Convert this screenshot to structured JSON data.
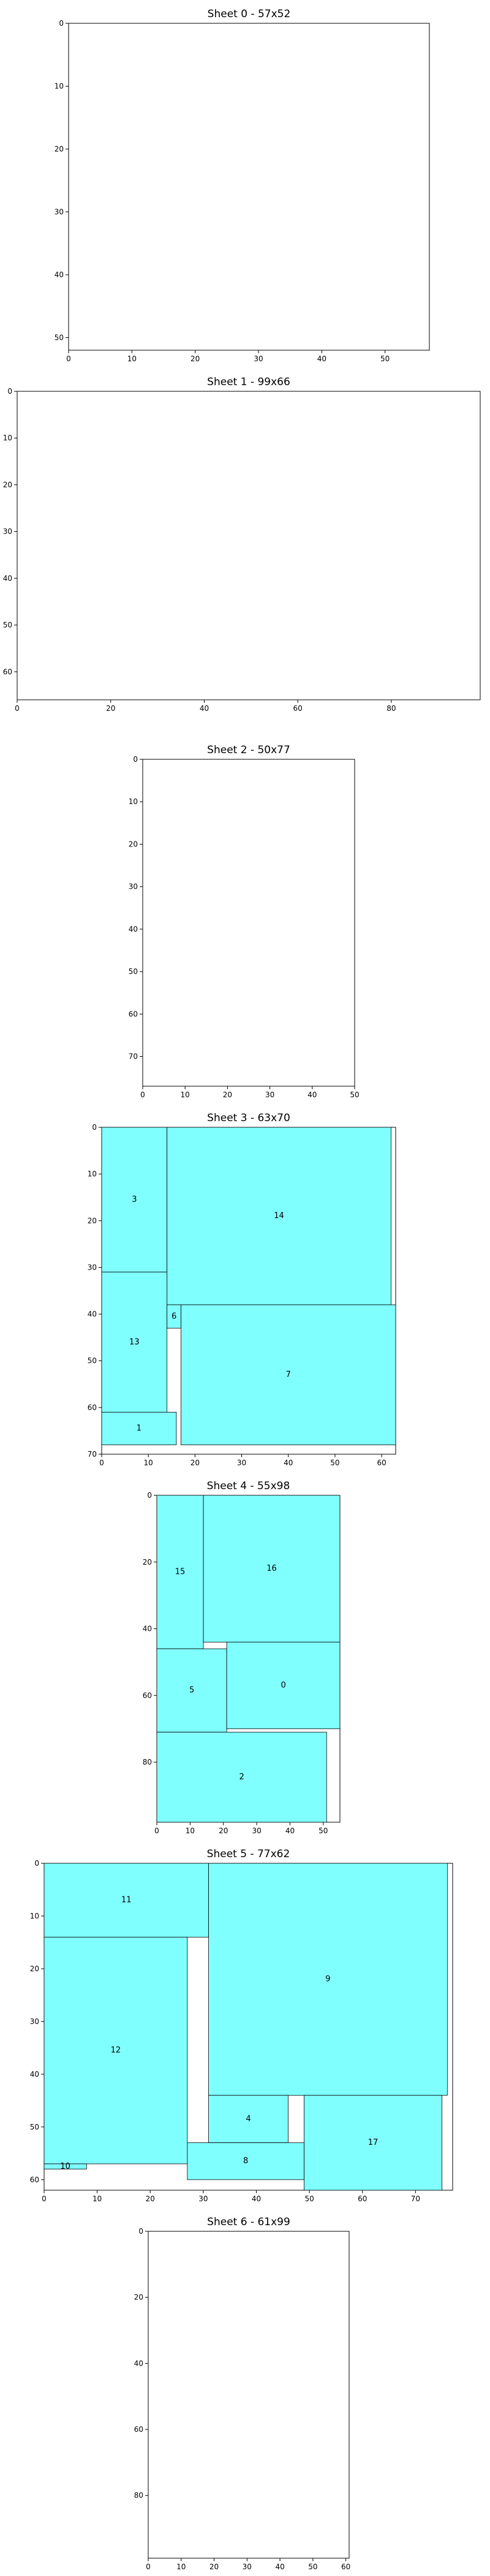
{
  "chart_data": [
    {
      "type": "packing",
      "title": "Sheet 0 - 57x52",
      "xlim": [
        0,
        57
      ],
      "ylim": [
        52,
        0
      ],
      "xticks": [
        0,
        10,
        20,
        30,
        40,
        50
      ],
      "yticks": [
        0,
        10,
        20,
        30,
        40,
        50
      ],
      "pieces": []
    },
    {
      "type": "packing",
      "title": "Sheet 1 - 99x66",
      "xlim": [
        0,
        99
      ],
      "ylim": [
        66,
        0
      ],
      "xticks": [
        0,
        20,
        40,
        60,
        80
      ],
      "yticks": [
        0,
        10,
        20,
        30,
        40,
        50,
        60
      ],
      "pieces": []
    },
    {
      "type": "packing",
      "title": "Sheet 2 - 50x77",
      "xlim": [
        0,
        50
      ],
      "ylim": [
        77,
        0
      ],
      "xticks": [
        0,
        10,
        20,
        30,
        40,
        50
      ],
      "yticks": [
        0,
        10,
        20,
        30,
        40,
        50,
        60,
        70
      ],
      "pieces": []
    },
    {
      "type": "packing",
      "title": "Sheet 3 - 63x70",
      "xlim": [
        0,
        63
      ],
      "ylim": [
        70,
        0
      ],
      "xticks": [
        0,
        10,
        20,
        30,
        40,
        50,
        60
      ],
      "yticks": [
        0,
        10,
        20,
        30,
        40,
        50,
        60,
        70
      ],
      "pieces": [
        {
          "label": "3",
          "x": 0,
          "y": 0,
          "w": 14,
          "h": 31
        },
        {
          "label": "14",
          "x": 14,
          "y": 0,
          "w": 48,
          "h": 38
        },
        {
          "label": "13",
          "x": 0,
          "y": 31,
          "w": 14,
          "h": 30
        },
        {
          "label": "6",
          "x": 14,
          "y": 38,
          "w": 3,
          "h": 5
        },
        {
          "label": "7",
          "x": 17,
          "y": 38,
          "w": 46,
          "h": 30
        },
        {
          "label": "1",
          "x": 0,
          "y": 61,
          "w": 16,
          "h": 7
        }
      ]
    },
    {
      "type": "packing",
      "title": "Sheet 4 - 55x98",
      "xlim": [
        0,
        55
      ],
      "ylim": [
        98,
        0
      ],
      "xticks": [
        0,
        10,
        20,
        30,
        40,
        50
      ],
      "yticks": [
        0,
        20,
        40,
        60,
        80
      ],
      "pieces": [
        {
          "label": "15",
          "x": 0,
          "y": 0,
          "w": 14,
          "h": 46
        },
        {
          "label": "16",
          "x": 14,
          "y": 0,
          "w": 41,
          "h": 44
        },
        {
          "label": "5",
          "x": 0,
          "y": 46,
          "w": 21,
          "h": 25
        },
        {
          "label": "0",
          "x": 21,
          "y": 44,
          "w": 34,
          "h": 26
        },
        {
          "label": "2",
          "x": 0,
          "y": 71,
          "w": 51,
          "h": 27
        }
      ]
    },
    {
      "type": "packing",
      "title": "Sheet 5 - 77x62",
      "xlim": [
        0,
        77
      ],
      "ylim": [
        62,
        0
      ],
      "xticks": [
        0,
        10,
        20,
        30,
        40,
        50,
        60,
        70
      ],
      "yticks": [
        0,
        10,
        20,
        30,
        40,
        50,
        60
      ],
      "pieces": [
        {
          "label": "11",
          "x": 0,
          "y": 0,
          "w": 31,
          "h": 14
        },
        {
          "label": "9",
          "x": 31,
          "y": 0,
          "w": 45,
          "h": 44
        },
        {
          "label": "12",
          "x": 0,
          "y": 14,
          "w": 27,
          "h": 43
        },
        {
          "label": "4",
          "x": 31,
          "y": 44,
          "w": 15,
          "h": 9
        },
        {
          "label": "17",
          "x": 49,
          "y": 44,
          "w": 26,
          "h": 18
        },
        {
          "label": "8",
          "x": 27,
          "y": 53,
          "w": 22,
          "h": 7
        },
        {
          "label": "10",
          "x": 0,
          "y": 57,
          "w": 8,
          "h": 1
        }
      ]
    },
    {
      "type": "packing",
      "title": "Sheet 6 - 61x99",
      "xlim": [
        0,
        61
      ],
      "ylim": [
        99,
        0
      ],
      "xticks": [
        0,
        10,
        20,
        30,
        40,
        50,
        60
      ],
      "yticks": [
        0,
        20,
        40,
        60,
        80
      ],
      "pieces": []
    }
  ],
  "colors": {
    "piece_fill": "#80ffff",
    "edge": "#000000",
    "background": "#ffffff"
  }
}
